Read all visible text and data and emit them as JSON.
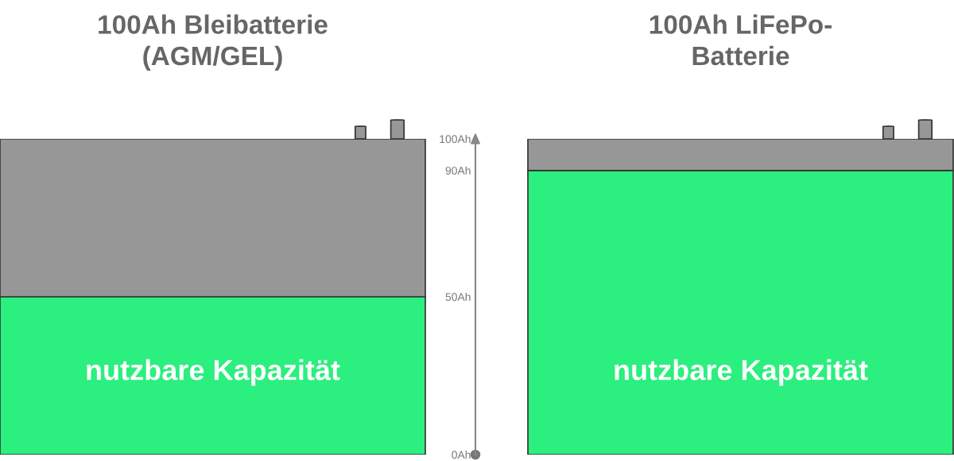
{
  "chart_data": {
    "type": "bar",
    "categories": [
      "100Ah Bleibatterie\n(AGM/GEL)",
      "100Ah LiFePo-\nBatterie"
    ],
    "stacked": true,
    "series": [
      {
        "name": "nutzbare Kapazität",
        "color": "#2bef7e",
        "values": [
          50,
          90
        ]
      },
      {
        "color": "#979797",
        "values": [
          50,
          10
        ]
      }
    ],
    "ylim": [
      0,
      100
    ],
    "yticks": [
      {
        "value": 0,
        "label": "0Ah"
      },
      {
        "value": 50,
        "label": "50Ah"
      },
      {
        "value": 90,
        "label": "90Ah"
      },
      {
        "value": 100,
        "label": "100Ah"
      }
    ],
    "legend": false,
    "grid": false
  }
}
